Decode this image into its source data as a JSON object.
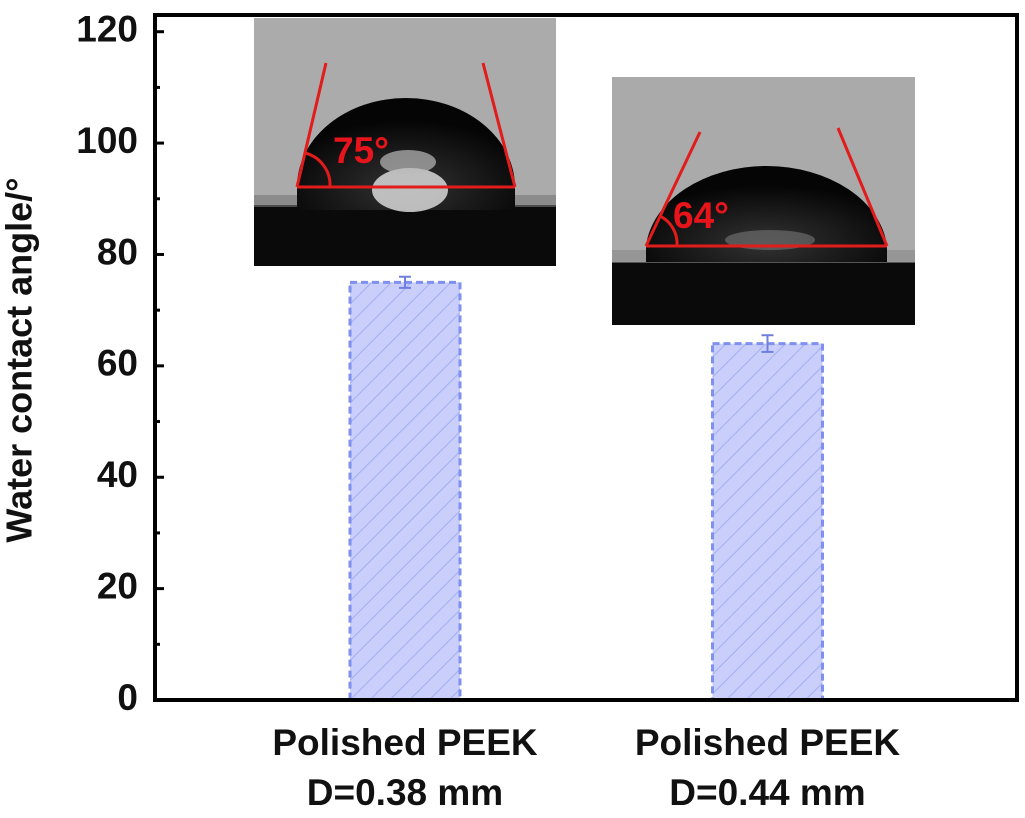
{
  "chart_data": {
    "type": "bar",
    "y_label": "Water contact angle/°",
    "categories": [
      "Polished PEEK\nD=0.38 mm",
      "Polished PEEK\nD=0.44 mm"
    ],
    "values": [
      75,
      64
    ],
    "errors": [
      1,
      1.5
    ],
    "color": "#7f90f0",
    "ylim": [
      0,
      123
    ],
    "yticks": [
      0,
      20,
      40,
      60,
      80,
      100,
      120
    ],
    "yminorticks": [
      10,
      30,
      50,
      70,
      90,
      110
    ],
    "annotations": [
      "75°",
      "64°"
    ]
  }
}
